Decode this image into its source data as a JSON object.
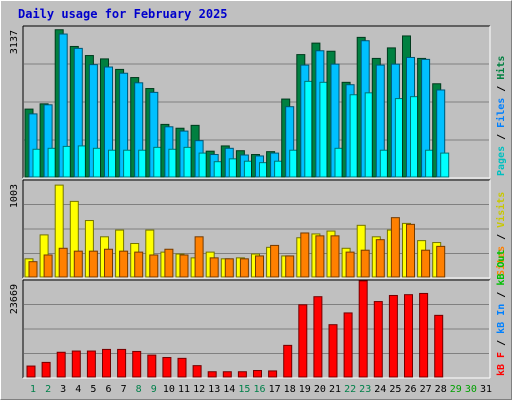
{
  "title": "Daily usage for February 2025",
  "colors": {
    "hits": "#008040",
    "files": "#00c0ff",
    "pages": "#00ffff",
    "visits": "#ffff00",
    "sites": "#ff8000",
    "kbytes": "#ff0000",
    "kb_in": "#0080ff",
    "kb_out": "#00c000",
    "day_weekday": "#000000",
    "day_weekend": "#00804a",
    "day_future": "#00a000"
  },
  "chart_data": [
    {
      "type": "bar",
      "panel": "top",
      "max_label": "3137",
      "ylim": [
        0,
        3137
      ],
      "legend": [
        "Pages",
        "Files",
        "Hits"
      ],
      "x": [
        "1",
        "2",
        "3",
        "4",
        "5",
        "6",
        "7",
        "8",
        "9",
        "10",
        "11",
        "12",
        "13",
        "14",
        "15",
        "16",
        "17",
        "18",
        "19",
        "20",
        "21",
        "22",
        "23",
        "24",
        "25",
        "26",
        "27",
        "28"
      ],
      "series": [
        {
          "name": "Hits",
          "values": [
            1420,
            1530,
            3080,
            2730,
            2540,
            2470,
            2250,
            2080,
            1850,
            1100,
            1020,
            1080,
            540,
            650,
            550,
            470,
            530,
            1630,
            2560,
            2800,
            2630,
            1980,
            2920,
            2480,
            2700,
            2950,
            2480,
            1950
          ]
        },
        {
          "name": "Files",
          "values": [
            1320,
            1510,
            2990,
            2690,
            2350,
            2300,
            2170,
            1970,
            1770,
            1050,
            960,
            760,
            470,
            600,
            460,
            440,
            500,
            1470,
            2340,
            2640,
            2360,
            1930,
            2850,
            2340,
            2360,
            2500,
            2460,
            1820
          ]
        },
        {
          "name": "Pages",
          "values": [
            580,
            600,
            640,
            650,
            600,
            560,
            560,
            560,
            620,
            580,
            620,
            500,
            320,
            380,
            330,
            300,
            330,
            560,
            2000,
            1980,
            600,
            1720,
            1760,
            560,
            1640,
            1680,
            560,
            500
          ]
        }
      ]
    },
    {
      "type": "bar",
      "panel": "middle",
      "max_label": "1003",
      "ylim": [
        0,
        1003
      ],
      "legend": [
        "Visits",
        "Sites"
      ],
      "x": [
        "1",
        "2",
        "3",
        "4",
        "5",
        "6",
        "7",
        "8",
        "9",
        "10",
        "11",
        "12",
        "13",
        "14",
        "15",
        "16",
        "17",
        "18",
        "19",
        "20",
        "21",
        "22",
        "23",
        "24",
        "25",
        "26",
        "27",
        "28"
      ],
      "series": [
        {
          "name": "Visits",
          "values": [
            190,
            440,
            960,
            790,
            590,
            420,
            490,
            350,
            490,
            260,
            240,
            200,
            260,
            190,
            200,
            240,
            310,
            220,
            410,
            450,
            480,
            300,
            540,
            420,
            490,
            560,
            380,
            360
          ]
        },
        {
          "name": "Sites",
          "values": [
            160,
            230,
            300,
            270,
            270,
            290,
            270,
            260,
            230,
            290,
            230,
            420,
            200,
            190,
            190,
            220,
            330,
            220,
            460,
            430,
            430,
            260,
            280,
            390,
            620,
            550,
            280,
            320
          ]
        }
      ]
    },
    {
      "type": "bar",
      "panel": "bottom",
      "max_label": "23669",
      "ylim": [
        0,
        23669
      ],
      "legend": [
        "KB F",
        "KB In",
        "KB Out"
      ],
      "x": [
        "1",
        "2",
        "3",
        "4",
        "5",
        "6",
        "7",
        "8",
        "9",
        "10",
        "11",
        "12",
        "13",
        "14",
        "15",
        "16",
        "17",
        "18",
        "19",
        "20",
        "21",
        "22",
        "23",
        "24",
        "25",
        "26",
        "27",
        "28"
      ],
      "series": [
        {
          "name": "KB F",
          "values": [
            2700,
            3600,
            6100,
            6400,
            6400,
            6800,
            6800,
            6300,
            5400,
            4800,
            4600,
            2800,
            1300,
            1300,
            1300,
            1600,
            1500,
            7800,
            17800,
            19800,
            12900,
            15800,
            23700,
            18600,
            20100,
            20300,
            20600,
            15200
          ]
        }
      ]
    }
  ],
  "days": [
    {
      "label": "1",
      "kind": "weekend"
    },
    {
      "label": "2",
      "kind": "weekend"
    },
    {
      "label": "3",
      "kind": "weekday"
    },
    {
      "label": "4",
      "kind": "weekday"
    },
    {
      "label": "5",
      "kind": "weekday"
    },
    {
      "label": "6",
      "kind": "weekday"
    },
    {
      "label": "7",
      "kind": "weekday"
    },
    {
      "label": "8",
      "kind": "weekend"
    },
    {
      "label": "9",
      "kind": "weekend"
    },
    {
      "label": "10",
      "kind": "weekday"
    },
    {
      "label": "11",
      "kind": "weekday"
    },
    {
      "label": "12",
      "kind": "weekday"
    },
    {
      "label": "13",
      "kind": "weekday"
    },
    {
      "label": "14",
      "kind": "weekday"
    },
    {
      "label": "15",
      "kind": "weekend"
    },
    {
      "label": "16",
      "kind": "weekend"
    },
    {
      "label": "17",
      "kind": "weekday"
    },
    {
      "label": "18",
      "kind": "weekday"
    },
    {
      "label": "19",
      "kind": "weekday"
    },
    {
      "label": "20",
      "kind": "weekday"
    },
    {
      "label": "21",
      "kind": "weekday"
    },
    {
      "label": "22",
      "kind": "weekend"
    },
    {
      "label": "23",
      "kind": "weekend"
    },
    {
      "label": "24",
      "kind": "weekday"
    },
    {
      "label": "25",
      "kind": "weekday"
    },
    {
      "label": "26",
      "kind": "weekday"
    },
    {
      "label": "27",
      "kind": "weekday"
    },
    {
      "label": "28",
      "kind": "weekday"
    },
    {
      "label": "29",
      "kind": "future"
    },
    {
      "label": "30",
      "kind": "future"
    },
    {
      "label": "31",
      "kind": "weekday"
    }
  ],
  "legend_text": {
    "top": [
      {
        "text": "Pages",
        "color": "#00c0c0"
      },
      {
        "text": " / ",
        "color": "#000000"
      },
      {
        "text": "Files",
        "color": "#0080ff"
      },
      {
        "text": " / ",
        "color": "#000000"
      },
      {
        "text": "Hits",
        "color": "#008040"
      }
    ],
    "middle": [
      {
        "text": "Sites",
        "color": "#ff8000"
      },
      {
        "text": " / ",
        "color": "#000000"
      },
      {
        "text": "Visits",
        "color": "#c8c800"
      }
    ],
    "bottom": [
      {
        "text": "kB F",
        "color": "#ff0000"
      },
      {
        "text": " / ",
        "color": "#000000"
      },
      {
        "text": "kB In",
        "color": "#0080ff"
      },
      {
        "text": " / ",
        "color": "#000000"
      },
      {
        "text": "kB Out",
        "color": "#00c000"
      }
    ]
  }
}
